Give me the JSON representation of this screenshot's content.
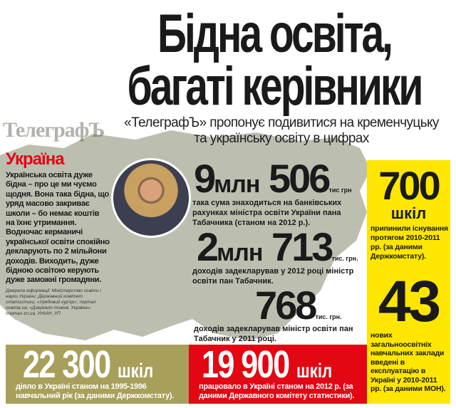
{
  "title": {
    "line1": "Бідна освіта,",
    "line2": "багаті керівники"
  },
  "subtitle": {
    "line1": "«ТелеграфЪ» пропонує подивитися на кременчуцьку",
    "line2": "та українську освіту в цифрах"
  },
  "section_heading": "Україна",
  "intro_text": "Українська освіта дуже бідна – про це ми чуємо щодня. Вона така бідна, що уряд масово закриває школи – бо немає коштів на їхнє утримання. Водночас керманичі української освіти спокійно декларують по 2 мільйони доходів. Виходить, дуже бідною освітою керують дуже заможні громадяни.",
  "sources": "Джерела інформації: Міністерство освіти і науки України; Державний комітет статистики; «Урядовий кур'єр»; портал освіта.ua; «Дзеркало тижня. Україна»; портал zn.ua; УНІАН; УП",
  "stats": [
    {
      "num1": "9",
      "mid": "млн",
      "num2": "506",
      "unit": "тис грн",
      "text": "така сума знаходиться на банківських рахунках міністра освіти України пана Табачника (станом на 2012 р.)."
    },
    {
      "num1": "2",
      "mid": "млн",
      "num2": "713",
      "unit": "тис. грн.",
      "text": "доходів задекларував у 2012 році міністр освіти пан Табачник."
    },
    {
      "num2": "768",
      "unit": "тис. грн.",
      "text": "доходів задекларував міністр освіти пан Табачник у 2011 році."
    }
  ],
  "yellow_panel": {
    "stat1": {
      "num": "700",
      "unit": "шкіл",
      "text": "припинили існування протягом 2010-2011 рр. (за даними Держкомстату)."
    },
    "stat2": {
      "num": "43",
      "text": "нових загальноосвітніх навчальних заклади введені в експлуатацію в Україні у 2010-2011 рр. (за даними МОН)."
    }
  },
  "bottom": {
    "left": {
      "num": "22 300",
      "unit": "шкіл",
      "text": "діяло в Україні станом на 1995-1996 навчальний рік (за даними Держкомстату)."
    },
    "right": {
      "num": "19 900",
      "unit": "шкіл",
      "text": "працювало в Україні станом на 2012 р. (за даними Державного комітету статистики)."
    }
  },
  "watermark": "ТелеграфЪ",
  "colors": {
    "red": "#e30613",
    "yellow": "#ffe600",
    "olive": "#a89f5b",
    "map": "#bcbfb0"
  }
}
